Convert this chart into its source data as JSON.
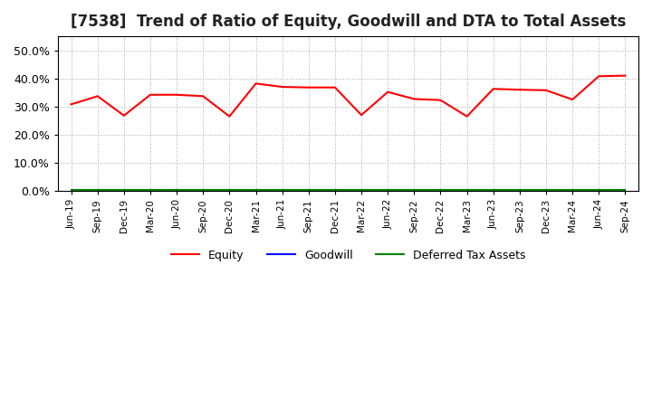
{
  "title": "[7538]  Trend of Ratio of Equity, Goodwill and DTA to Total Assets",
  "x_labels": [
    "Jun-19",
    "Sep-19",
    "Dec-19",
    "Mar-20",
    "Jun-20",
    "Sep-20",
    "Dec-20",
    "Mar-21",
    "Jun-21",
    "Sep-21",
    "Dec-21",
    "Mar-22",
    "Jun-22",
    "Sep-22",
    "Dec-22",
    "Mar-23",
    "Jun-23",
    "Sep-23",
    "Dec-23",
    "Mar-24",
    "Jun-24",
    "Sep-24"
  ],
  "equity": [
    0.308,
    0.337,
    0.268,
    0.342,
    0.342,
    0.337,
    0.265,
    0.382,
    0.37,
    0.368,
    0.368,
    0.27,
    0.352,
    0.327,
    0.323,
    0.265,
    0.363,
    0.36,
    0.358,
    0.325,
    0.408,
    0.41
  ],
  "goodwill": [
    0.0,
    0.0,
    0.0,
    0.0,
    0.0,
    0.0,
    0.0,
    0.0,
    0.0,
    0.0,
    0.0,
    0.0,
    0.0,
    0.0,
    0.0,
    0.0,
    0.0,
    0.0,
    0.0,
    0.0,
    0.0,
    0.0
  ],
  "dta": [
    0.002,
    0.002,
    0.002,
    0.002,
    0.002,
    0.002,
    0.002,
    0.002,
    0.002,
    0.002,
    0.002,
    0.002,
    0.002,
    0.002,
    0.002,
    0.002,
    0.002,
    0.002,
    0.002,
    0.002,
    0.002,
    0.002
  ],
  "equity_color": "#ff0000",
  "goodwill_color": "#0000ff",
  "dta_color": "#008000",
  "ylim": [
    0.0,
    0.55
  ],
  "yticks": [
    0.0,
    0.1,
    0.2,
    0.3,
    0.4,
    0.5
  ],
  "background_color": "#ffffff",
  "plot_bg_color": "#ffffff",
  "grid_color": "#aaaaaa",
  "title_fontsize": 12,
  "legend_labels": [
    "Equity",
    "Goodwill",
    "Deferred Tax Assets"
  ]
}
